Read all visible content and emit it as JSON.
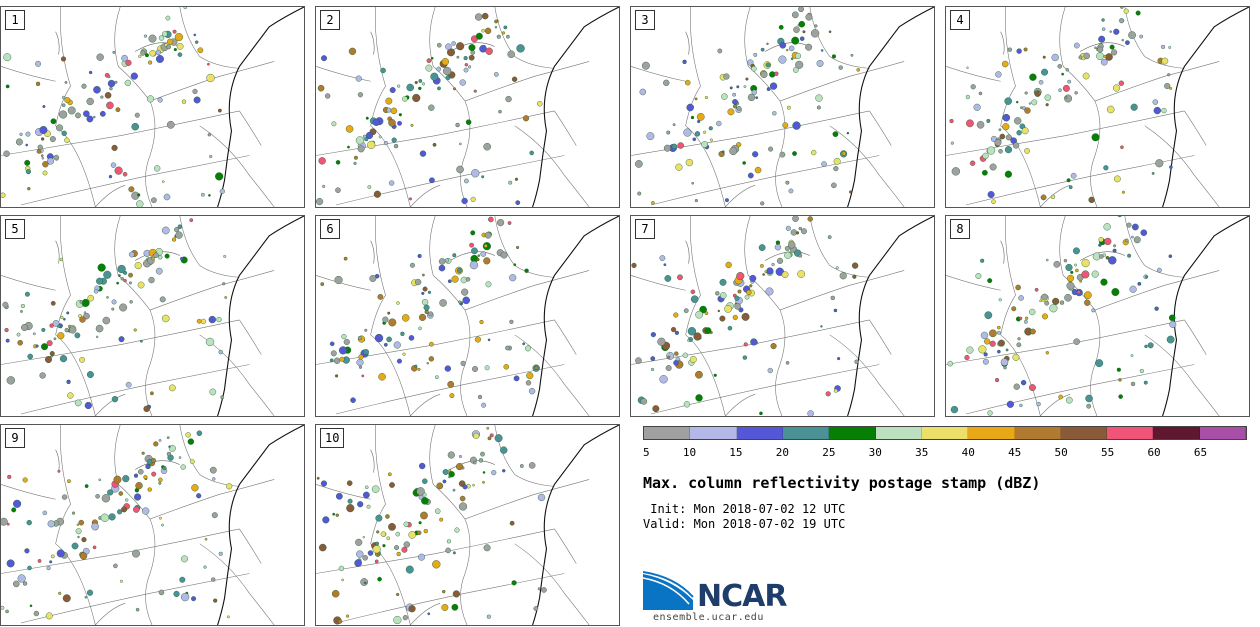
{
  "panels": [
    {
      "label": "1"
    },
    {
      "label": "2"
    },
    {
      "label": "3"
    },
    {
      "label": "4"
    },
    {
      "label": "5"
    },
    {
      "label": "6"
    },
    {
      "label": "7"
    },
    {
      "label": "8"
    },
    {
      "label": "9"
    },
    {
      "label": "10"
    }
  ],
  "colorbar": {
    "ticks": [
      "5",
      "10",
      "15",
      "20",
      "25",
      "30",
      "35",
      "40",
      "45",
      "50",
      "55",
      "60",
      "65"
    ],
    "colors": [
      "#a0a0a0",
      "#b4b8e8",
      "#5558d6",
      "#4a9296",
      "#058005",
      "#bde0c0",
      "#ece06a",
      "#e8a818",
      "#b07a30",
      "#8a5a3a",
      "#f05478",
      "#601830",
      "#a850a8"
    ]
  },
  "title": "Max. column reflectivity postage stamp (dBZ)",
  "init_text": " Init: Mon 2018-07-02 12 UTC",
  "valid_text": "Valid: Mon 2018-07-02 19 UTC",
  "logo": {
    "name": "NCAR",
    "url": "ensemble.ucar.edu",
    "colors": {
      "blue": "#0a74c4",
      "dark": "#1f3d6b"
    }
  }
}
